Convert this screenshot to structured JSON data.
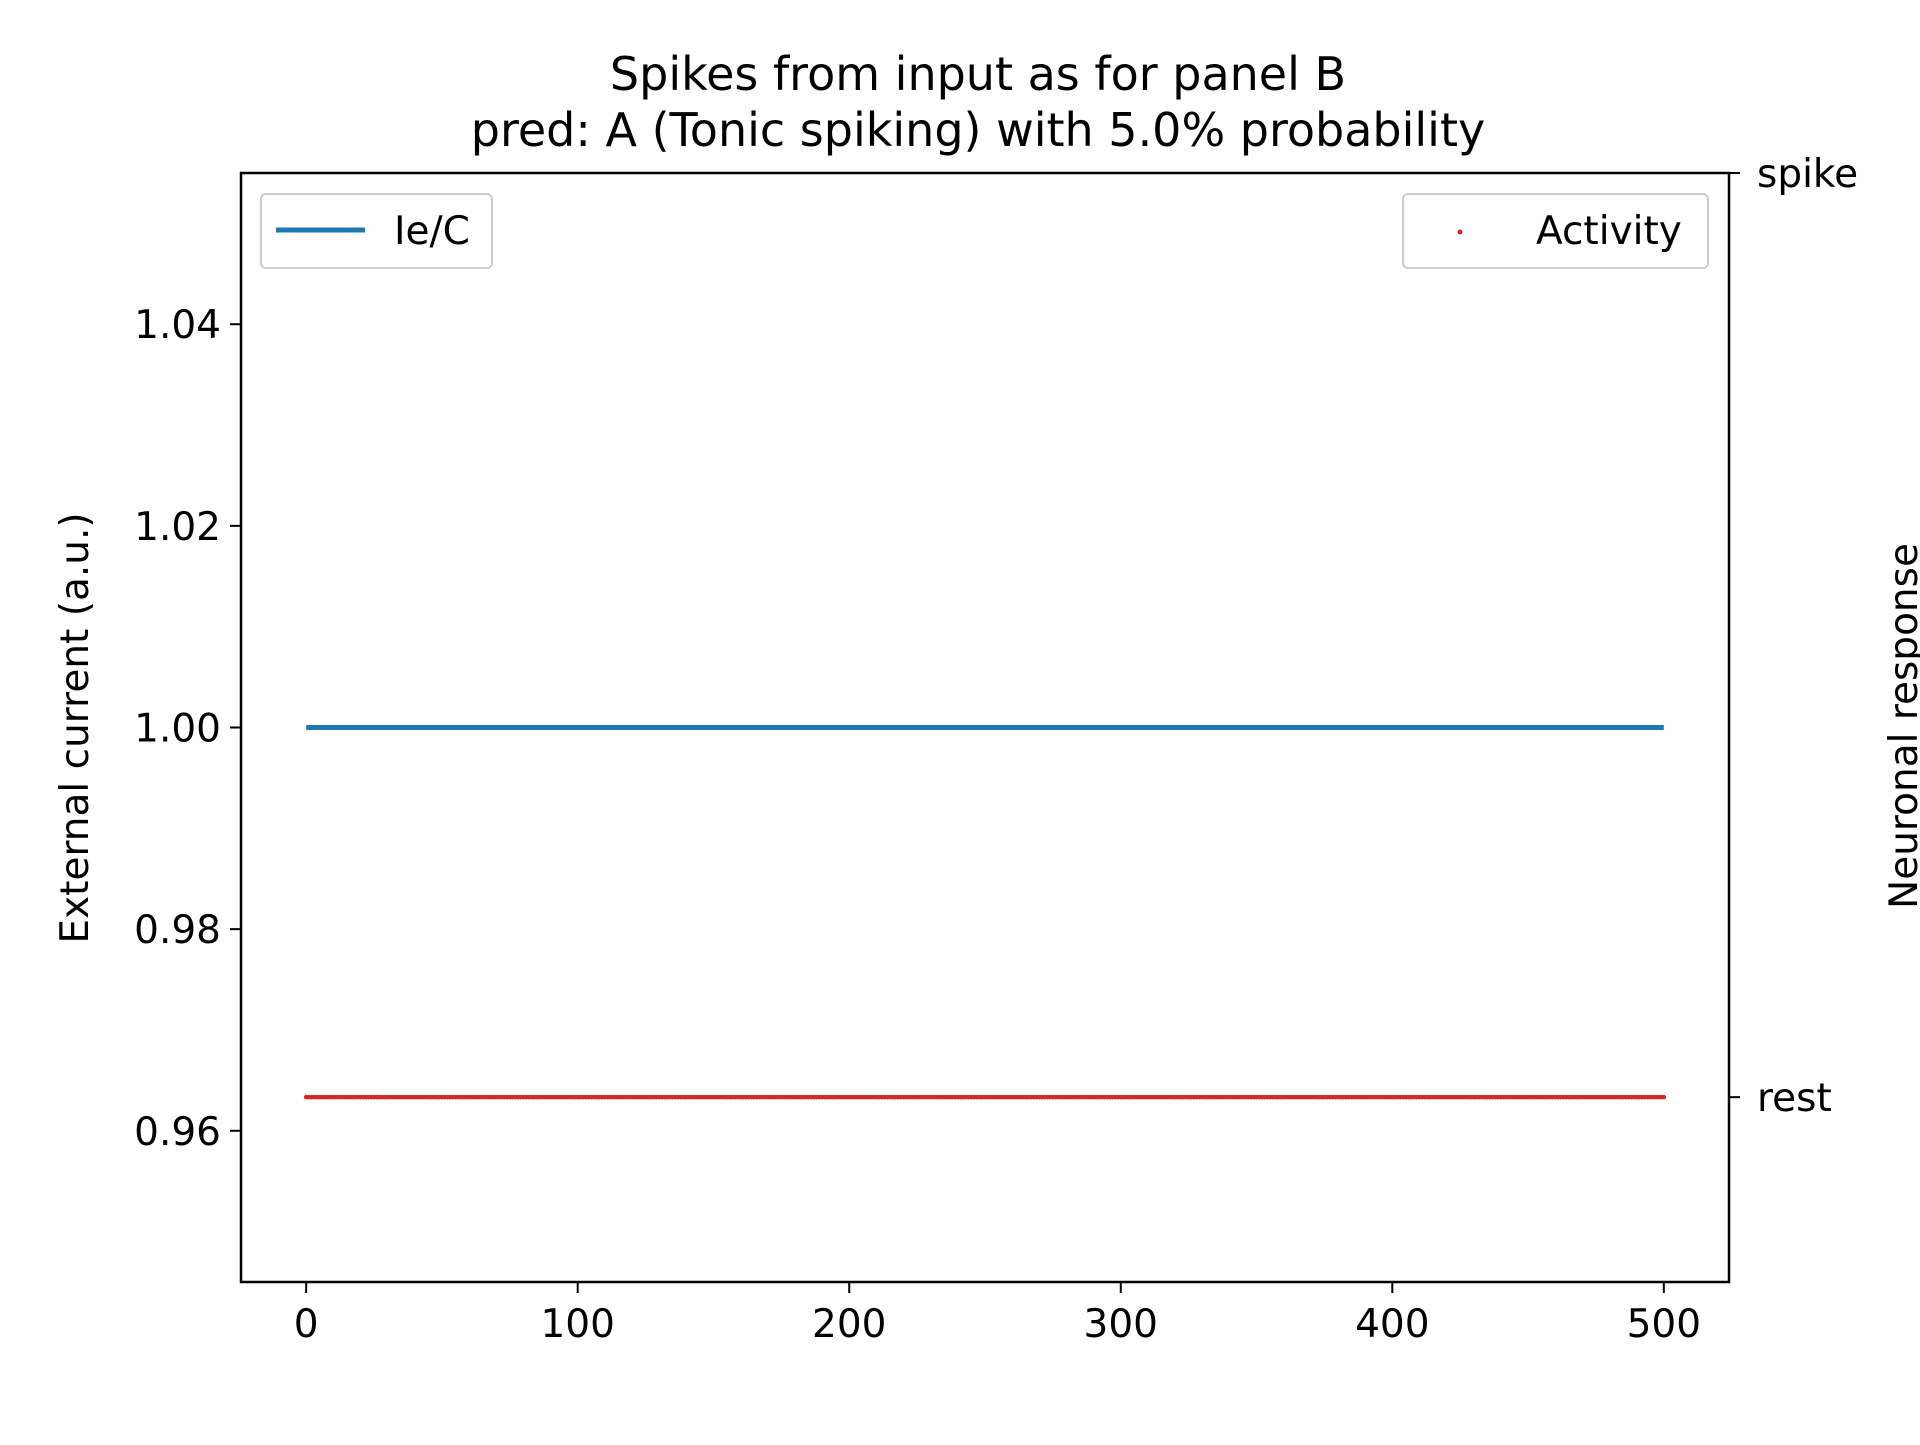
{
  "chart_data": {
    "type": "line",
    "title_lines": [
      "Spikes from input as for panel B",
      "pred: A (Tonic spiking) with 5.0% probability"
    ],
    "xlabel": "",
    "ylabel_left": "External current (a.u.)",
    "ylabel_right": "Neuronal response",
    "xlim": [
      -24,
      524
    ],
    "ylim_left": [
      0.945,
      1.055
    ],
    "x_ticks": [
      0,
      100,
      200,
      300,
      400,
      500
    ],
    "x_tick_labels": [
      "0",
      "100",
      "200",
      "300",
      "400",
      "500"
    ],
    "y_left_ticks": [
      0.96,
      0.98,
      1.0,
      1.02,
      1.04
    ],
    "y_left_tick_labels": [
      "0.96",
      "0.98",
      "1.00",
      "1.02",
      "1.04"
    ],
    "ylim_right": [
      -0.2,
      1.0
    ],
    "y_right_ticks": [
      0,
      1
    ],
    "y_right_tick_labels": [
      "rest",
      "spike"
    ],
    "series": [
      {
        "name": "Ie/C",
        "kind": "line",
        "axis": "left",
        "color": "#1f77b4",
        "x": [
          0,
          500
        ],
        "y": [
          1.0,
          1.0
        ]
      },
      {
        "name": "Activity",
        "kind": "scatter",
        "axis": "right",
        "color": "#d62728",
        "x_range": [
          0,
          500
        ],
        "y_constant": 0
      }
    ],
    "legends": [
      {
        "series": "Ie/C",
        "placement": "upper-left"
      },
      {
        "series": "Activity",
        "placement": "upper-right"
      }
    ],
    "grid": false
  }
}
